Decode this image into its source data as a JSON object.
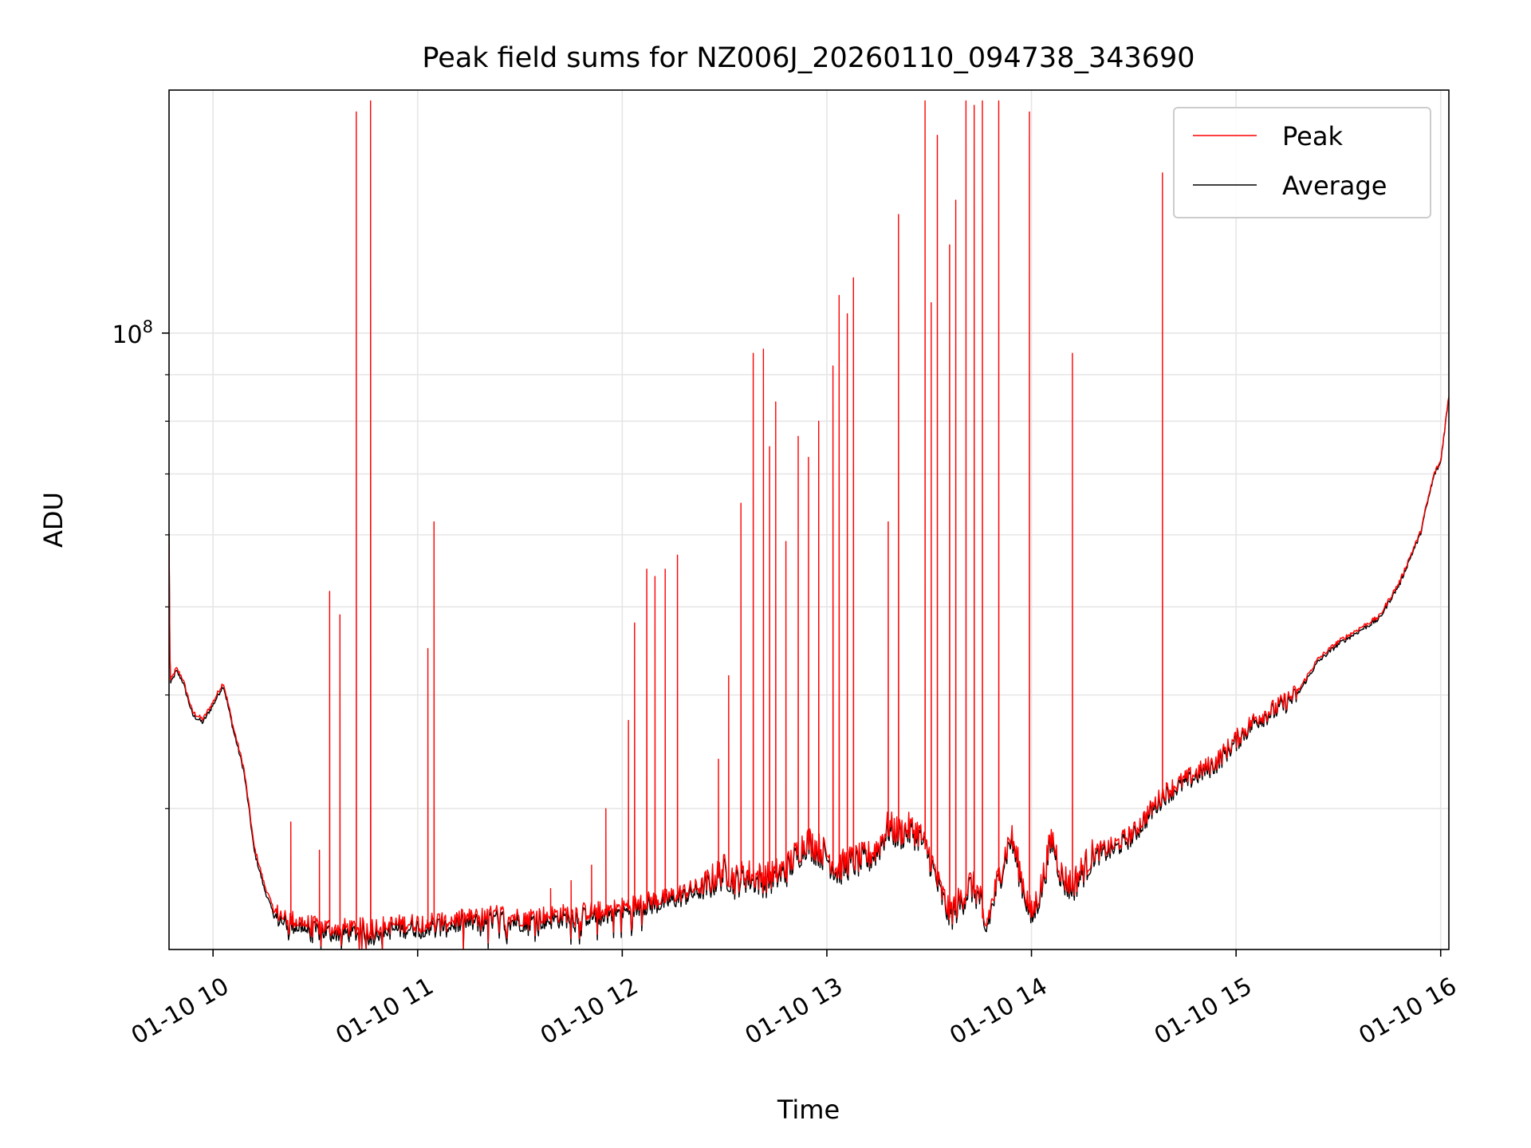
{
  "chart_data": {
    "type": "line",
    "title": "Peak field sums for NZ006J_20260110_094738_343690",
    "xlabel": "Time",
    "ylabel": "ADU",
    "yscale": "log",
    "ylim": [
      21000000,
      185000000
    ],
    "xlim_hours": [
      9.785,
      16.04
    ],
    "grid": true,
    "x_ticks": [
      {
        "hour": 10,
        "label": "01-10 10"
      },
      {
        "hour": 11,
        "label": "01-10 11"
      },
      {
        "hour": 12,
        "label": "01-10 12"
      },
      {
        "hour": 13,
        "label": "01-10 13"
      },
      {
        "hour": 14,
        "label": "01-10 14"
      },
      {
        "hour": 15,
        "label": "01-10 15"
      },
      {
        "hour": 16,
        "label": "01-10 16"
      }
    ],
    "y_major_ticks": [
      {
        "value": 100000000,
        "base": "10",
        "exp": "8"
      }
    ],
    "y_minor_grid": [
      30000000,
      40000000,
      50000000,
      60000000,
      70000000,
      80000000,
      90000000
    ],
    "legend": {
      "position": "top-right",
      "entries": [
        "Peak",
        "Average"
      ]
    },
    "series": [
      {
        "name": "Average",
        "color": "#000000",
        "points": [
          [
            9.785,
            60.0
          ],
          [
            9.79,
            41.0
          ],
          [
            9.82,
            42.5
          ],
          [
            9.85,
            41.5
          ],
          [
            9.9,
            38.0
          ],
          [
            9.95,
            37.3
          ],
          [
            10.0,
            39.0
          ],
          [
            10.05,
            41.0
          ],
          [
            10.1,
            36.5
          ],
          [
            10.15,
            33.0
          ],
          [
            10.2,
            27.0
          ],
          [
            10.25,
            24.5
          ],
          [
            10.3,
            22.8
          ],
          [
            10.4,
            22.3
          ],
          [
            10.5,
            22.0
          ],
          [
            10.6,
            21.9
          ],
          [
            10.7,
            21.9
          ],
          [
            10.8,
            22.0
          ],
          [
            10.9,
            22.1
          ],
          [
            11.0,
            22.2
          ],
          [
            11.1,
            22.3
          ],
          [
            11.2,
            22.4
          ],
          [
            11.3,
            22.5
          ],
          [
            11.4,
            22.7
          ],
          [
            11.5,
            22.5
          ],
          [
            11.6,
            22.6
          ],
          [
            11.7,
            22.7
          ],
          [
            11.8,
            22.8
          ],
          [
            11.9,
            22.9
          ],
          [
            12.0,
            23.1
          ],
          [
            12.1,
            23.4
          ],
          [
            12.2,
            23.6
          ],
          [
            12.3,
            24.0
          ],
          [
            12.4,
            24.4
          ],
          [
            12.5,
            25.5
          ],
          [
            12.55,
            24.8
          ],
          [
            12.6,
            25.2
          ],
          [
            12.7,
            24.9
          ],
          [
            12.8,
            25.5
          ],
          [
            12.85,
            26.5
          ],
          [
            12.9,
            27.5
          ],
          [
            12.95,
            27.0
          ],
          [
            13.0,
            26.5
          ],
          [
            13.05,
            25.5
          ],
          [
            13.1,
            26.0
          ],
          [
            13.2,
            26.3
          ],
          [
            13.25,
            27.0
          ],
          [
            13.3,
            28.5
          ],
          [
            13.35,
            28.0
          ],
          [
            13.4,
            28.3
          ],
          [
            13.45,
            28.0
          ],
          [
            13.5,
            26.5
          ],
          [
            13.55,
            24.3
          ],
          [
            13.6,
            22.8
          ],
          [
            13.65,
            23.5
          ],
          [
            13.7,
            24.6
          ],
          [
            13.75,
            23.8
          ],
          [
            13.77,
            21.7
          ],
          [
            13.8,
            23.0
          ],
          [
            13.85,
            25.5
          ],
          [
            13.9,
            27.8
          ],
          [
            13.95,
            25.0
          ],
          [
            14.0,
            22.6
          ],
          [
            14.05,
            24.5
          ],
          [
            14.1,
            27.7
          ],
          [
            14.15,
            25.0
          ],
          [
            14.2,
            24.5
          ],
          [
            14.25,
            25.5
          ],
          [
            14.3,
            26.5
          ],
          [
            14.4,
            27.0
          ],
          [
            14.5,
            28.0
          ],
          [
            14.6,
            30.0
          ],
          [
            14.65,
            31.0
          ],
          [
            14.7,
            31.5
          ],
          [
            14.8,
            32.5
          ],
          [
            14.9,
            33.5
          ],
          [
            15.0,
            35.5
          ],
          [
            15.1,
            37.5
          ],
          [
            15.2,
            38.5
          ],
          [
            15.3,
            40.0
          ],
          [
            15.4,
            43.5
          ],
          [
            15.5,
            45.5
          ],
          [
            15.6,
            47.0
          ],
          [
            15.7,
            48.5
          ],
          [
            15.8,
            53.0
          ],
          [
            15.9,
            60.0
          ],
          [
            15.97,
            70.0
          ],
          [
            16.0,
            72.0
          ],
          [
            16.04,
            85.0
          ]
        ],
        "units": "million ADU"
      },
      {
        "name": "Peak",
        "color": "#ff0000",
        "offset": 0.3,
        "spikes": [
          [
            10.38,
            29.0
          ],
          [
            10.52,
            27.0
          ],
          [
            10.57,
            52.0
          ],
          [
            10.62,
            49.0
          ],
          [
            10.7,
            175.0
          ],
          [
            10.77,
            180.0
          ],
          [
            11.05,
            45.0
          ],
          [
            11.08,
            62.0
          ],
          [
            11.65,
            24.5
          ],
          [
            11.75,
            25.0
          ],
          [
            11.85,
            26.0
          ],
          [
            11.92,
            30.0
          ],
          [
            12.03,
            37.5
          ],
          [
            12.06,
            48.0
          ],
          [
            12.12,
            55.0
          ],
          [
            12.16,
            54.0
          ],
          [
            12.21,
            55.0
          ],
          [
            12.27,
            57.0
          ],
          [
            12.47,
            34.0
          ],
          [
            12.52,
            42.0
          ],
          [
            12.58,
            65.0
          ],
          [
            12.64,
            95.0
          ],
          [
            12.69,
            96.0
          ],
          [
            12.72,
            75.0
          ],
          [
            12.75,
            84.0
          ],
          [
            12.8,
            59.0
          ],
          [
            12.86,
            77.0
          ],
          [
            12.91,
            73.0
          ],
          [
            12.96,
            80.0
          ],
          [
            13.03,
            92.0
          ],
          [
            13.06,
            110.0
          ],
          [
            13.1,
            105.0
          ],
          [
            13.13,
            115.0
          ],
          [
            13.3,
            62.0
          ],
          [
            13.35,
            135.0
          ],
          [
            13.48,
            180.0
          ],
          [
            13.51,
            108.0
          ],
          [
            13.54,
            165.0
          ],
          [
            13.6,
            125.0
          ],
          [
            13.63,
            140.0
          ],
          [
            13.68,
            180.0
          ],
          [
            13.72,
            178.0
          ],
          [
            13.76,
            180.0
          ],
          [
            13.84,
            180.0
          ],
          [
            13.99,
            175.0
          ],
          [
            14.2,
            95.0
          ],
          [
            14.64,
            150.0
          ]
        ],
        "units": "million ADU"
      }
    ]
  }
}
